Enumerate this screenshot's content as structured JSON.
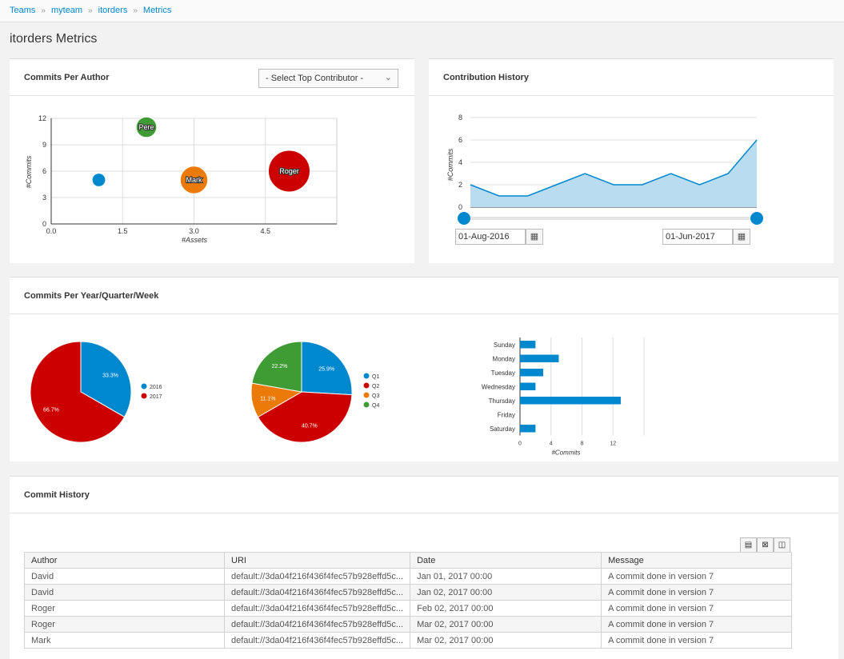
{
  "breadcrumb": [
    {
      "label": "Teams"
    },
    {
      "label": "myteam"
    },
    {
      "label": "itorders"
    },
    {
      "label": "Metrics"
    }
  ],
  "breadcrumb_separator": "»",
  "page_title": "itorders Metrics",
  "commits_per_author": {
    "title": "Commits Per Author",
    "select_value": "- Select Top Contributor -"
  },
  "contribution_history": {
    "title": "Contribution History",
    "start_date": "01-Aug-2016",
    "end_date": "01-Jun-2017"
  },
  "commits_period": {
    "title": "Commits Per Year/Quarter/Week"
  },
  "commit_history": {
    "title": "Commit History",
    "columns": [
      "Author",
      "URI",
      "Date",
      "Message"
    ],
    "rows": [
      [
        "David",
        "default://3da04f216f436f4fec57b928effd5c...",
        "Jan 01, 2017 00:00",
        "A commit done in version 7"
      ],
      [
        "David",
        "default://3da04f216f436f4fec57b928effd5c...",
        "Jan 02, 2017 00:00",
        "A commit done in version 7"
      ],
      [
        "Roger",
        "default://3da04f216f436f4fec57b928effd5c...",
        "Feb 02, 2017 00:00",
        "A commit done in version 7"
      ],
      [
        "Roger",
        "default://3da04f216f436f4fec57b928effd5c...",
        "Mar 02, 2017 00:00",
        "A commit done in version 7"
      ],
      [
        "Mark",
        "default://3da04f216f436f4fec57b928effd5c...",
        "Mar 02, 2017 00:00",
        "A commit done in version 7"
      ]
    ]
  },
  "colors": {
    "blue": "#0088ce",
    "red": "#cc0000",
    "orange": "#ec7a08",
    "green": "#3f9c35",
    "area": "#b9dcf0"
  },
  "chart_data": [
    {
      "type": "scatter",
      "xlabel": "#Assets",
      "ylabel": "#Commits",
      "xlim": [
        0,
        6
      ],
      "ylim": [
        0,
        12
      ],
      "xticks": [
        0.0,
        1.5,
        3.0,
        4.5
      ],
      "xtick_labels": [
        "0.0",
        "1.5",
        "3.0",
        "4.5"
      ],
      "yticks": [
        0,
        3,
        6,
        9,
        12
      ],
      "grid": true,
      "points": [
        {
          "label": "",
          "x": 1,
          "y": 5,
          "size": 1,
          "color": "#0088ce"
        },
        {
          "label": "Pere",
          "x": 2,
          "y": 11,
          "size": 2,
          "color": "#3f9c35"
        },
        {
          "label": "Mark",
          "x": 3,
          "y": 5,
          "size": 3,
          "color": "#ec7a08"
        },
        {
          "label": "Roger",
          "x": 5,
          "y": 6,
          "size": 5,
          "color": "#cc0000"
        }
      ]
    },
    {
      "type": "area",
      "ylabel": "#Commits",
      "ylim": [
        0,
        8
      ],
      "yticks": [
        0,
        2,
        4,
        6,
        8
      ],
      "values": [
        2,
        1,
        1,
        2,
        3,
        2,
        2,
        3,
        2,
        3,
        6
      ]
    },
    {
      "type": "pie",
      "labels": [
        "2016",
        "2017"
      ],
      "values": [
        33.3,
        66.7
      ],
      "value_labels": [
        "33.3%",
        "66.7%"
      ],
      "colors": [
        "#0088ce",
        "#cc0000"
      ],
      "legend": "right"
    },
    {
      "type": "pie",
      "labels": [
        "Q1",
        "Q2",
        "Q3",
        "Q4"
      ],
      "values": [
        25.9,
        40.7,
        11.1,
        22.2
      ],
      "value_labels": [
        "25.9%",
        "40.7%",
        "11.1%",
        "22.2%"
      ],
      "colors": [
        "#0088ce",
        "#cc0000",
        "#ec7a08",
        "#3f9c35"
      ],
      "legend": "right"
    },
    {
      "type": "bar",
      "orientation": "horizontal",
      "categories": [
        "Sunday",
        "Monday",
        "Tuesday",
        "Wednesday",
        "Thursday",
        "Friday",
        "Saturday"
      ],
      "values": [
        2,
        5,
        3,
        2,
        13,
        0,
        2
      ],
      "xlabel": "#Commits",
      "xlim": [
        0,
        16
      ],
      "xticks": [
        0,
        4,
        8,
        12
      ],
      "color": "#0088ce"
    }
  ]
}
